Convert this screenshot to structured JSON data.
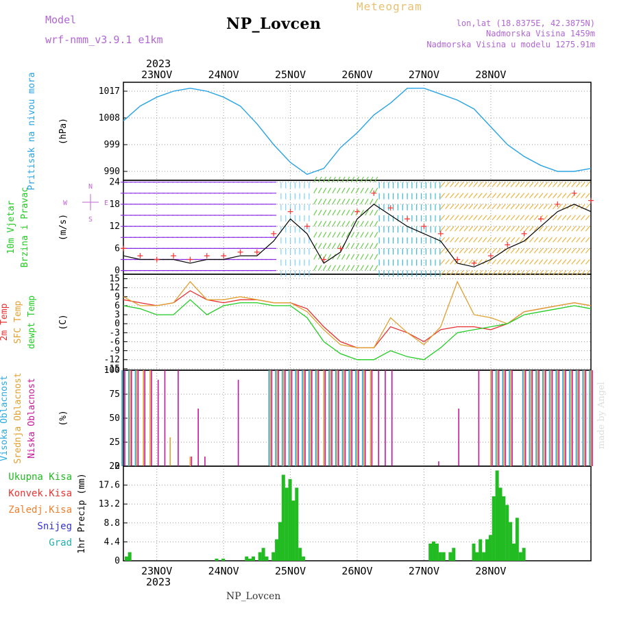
{
  "header": {
    "model_label": "Model",
    "model_name": "wrf-nmm_v3.9.1  e1km",
    "station": "NP_Lovcen",
    "product": "Meteogram",
    "lonlat": "lon,lat (18.8375E, 42.3875N)",
    "altitude": "Nadmorska Visina 1459m",
    "model_altitude": "Nadmorska Visina u modelu 1275.91m",
    "year_top": "2023",
    "year_bottom": "2023",
    "footer_station": "NP_Lovcen",
    "credit": "made by Angel"
  },
  "colors": {
    "pressure": "#29a3e6",
    "wind_speed": "#000000",
    "gust_marker": "#ff3030",
    "temp_2m": "#e83030",
    "temp_sfc": "#e0a030",
    "temp_dew": "#22cc22",
    "cloud_high": "#2aa8e0",
    "cloud_mid": "#e0a030",
    "cloud_low": "#c8169a",
    "precip_total": "#22bb22",
    "precip_conv": "#ee3333",
    "precip_snow": "#3333cc",
    "precip_grad": "#22b0b0",
    "precip_freeze": "#f08030"
  },
  "time_axis": [
    "23NOV",
    "24NOV",
    "25NOV",
    "26NOV",
    "27NOV",
    "28NOV"
  ],
  "chart_data": [
    {
      "type": "line",
      "id": "pressure",
      "ylabel_lines": [
        "Pritisak na nivou mora",
        "(hPa)"
      ],
      "yticks": [
        990,
        999,
        1008,
        1017
      ],
      "ylim": [
        987,
        1020
      ],
      "x": [
        0.5,
        0.75,
        1.0,
        1.25,
        1.5,
        1.75,
        2.0,
        2.25,
        2.5,
        2.75,
        3.0,
        3.25,
        3.5,
        3.75,
        4.0,
        4.25,
        4.5,
        4.75,
        5.0,
        5.25,
        5.5,
        5.75,
        6.0,
        6.25,
        6.5,
        6.75,
        7.0,
        7.25,
        7.5
      ],
      "series": [
        {
          "values": [
            1007,
            1012,
            1015,
            1017,
            1018,
            1017,
            1015,
            1012,
            1006,
            999,
            993,
            989,
            991,
            998,
            1003,
            1009,
            1013,
            1018,
            1018,
            1016,
            1014,
            1011,
            1005,
            999,
            995,
            992,
            990,
            990,
            991
          ]
        }
      ]
    },
    {
      "type": "line",
      "id": "wind",
      "ylabel_lines": [
        "10m Vjetar",
        "Brzina i Pravac",
        "(m/s)"
      ],
      "compass": {
        "w": "W",
        "e": "E",
        "n": "N",
        "s": "S"
      },
      "yticks": [
        0,
        6,
        12,
        18,
        24
      ],
      "ylim": [
        -1,
        24.5
      ],
      "x": [
        0.5,
        0.75,
        1.0,
        1.25,
        1.5,
        1.75,
        2.0,
        2.25,
        2.5,
        2.75,
        3.0,
        3.25,
        3.5,
        3.75,
        4.0,
        4.25,
        4.5,
        4.75,
        5.0,
        5.25,
        5.5,
        5.75,
        6.0,
        6.25,
        6.5,
        6.75,
        7.0,
        7.25,
        7.5
      ],
      "series": [
        {
          "name": "speed",
          "values": [
            4,
            3,
            3,
            3,
            2,
            3,
            3,
            4,
            4,
            8,
            14,
            10,
            2,
            5,
            14,
            18,
            15,
            12,
            10,
            8,
            2,
            1,
            3,
            6,
            8,
            12,
            16,
            18,
            16
          ]
        },
        {
          "name": "gust",
          "values": [
            6,
            4,
            3,
            4,
            3,
            4,
            4,
            5,
            5,
            10,
            16,
            12,
            3,
            6,
            16,
            21,
            17,
            14,
            12,
            10,
            3,
            2,
            4,
            7,
            10,
            14,
            18,
            21,
            19
          ]
        }
      ]
    },
    {
      "type": "line",
      "id": "temperature",
      "ylabel_lines": [
        "2m Temp",
        "SFC Temp",
        "dewpt Temp",
        "(C)"
      ],
      "yticks": [
        -15,
        -12,
        -9,
        -6,
        -3,
        0,
        3,
        6,
        9,
        12,
        15
      ],
      "ylim": [
        -15.5,
        16.5
      ],
      "x": [
        0.5,
        0.75,
        1.0,
        1.25,
        1.5,
        1.75,
        2.0,
        2.25,
        2.5,
        2.75,
        3.0,
        3.25,
        3.5,
        3.75,
        4.0,
        4.25,
        4.5,
        4.75,
        5.0,
        5.25,
        5.5,
        5.75,
        6.0,
        6.25,
        6.5,
        6.75,
        7.0,
        7.25,
        7.5
      ],
      "series": [
        {
          "name": "2m",
          "values": [
            8,
            7,
            6,
            7,
            11,
            8,
            7,
            8,
            8,
            7,
            7,
            5,
            -1,
            -6,
            -8,
            -8,
            -1,
            -3,
            -6,
            -2,
            -1,
            -1,
            -2,
            0,
            4,
            5,
            6,
            7,
            6
          ]
        },
        {
          "name": "sfc",
          "values": [
            9,
            6,
            6,
            7,
            14,
            8,
            8,
            9,
            8,
            7,
            7,
            4,
            -2,
            -7,
            -8,
            -8,
            2,
            -3,
            -7,
            -1,
            14,
            3,
            2,
            0,
            4,
            5,
            6,
            7,
            6
          ]
        },
        {
          "name": "dew",
          "values": [
            6,
            5,
            3,
            3,
            8,
            3,
            6,
            7,
            7,
            6,
            6,
            2,
            -6,
            -10,
            -12,
            -12,
            -9,
            -11,
            -12,
            -8,
            -3,
            -2,
            -1,
            0,
            3,
            4,
            5,
            6,
            5
          ]
        }
      ]
    },
    {
      "type": "bar",
      "id": "clouds",
      "ylabel_lines": [
        "Visoka Oblacnost",
        "Srednja Oblacnost",
        "Niska Oblacnost",
        "(%)"
      ],
      "yticks": [
        0,
        25,
        50,
        75,
        100
      ],
      "ylim": [
        0,
        100
      ],
      "x": [
        0.5,
        0.6,
        0.7,
        0.8,
        0.9,
        1.0,
        1.1,
        1.2,
        1.3,
        1.5,
        1.6,
        1.7,
        2.0,
        2.2,
        2.7,
        2.8,
        2.9,
        3.0,
        3.1,
        3.2,
        3.3,
        3.4,
        3.5,
        3.6,
        3.7,
        3.8,
        3.9,
        4.0,
        4.1,
        4.2,
        4.3,
        4.4,
        4.5,
        5.2,
        5.5,
        5.8,
        6.0,
        6.1,
        6.2,
        6.3,
        6.5,
        6.6,
        6.7,
        6.8,
        6.9,
        7.0,
        7.1,
        7.2,
        7.3,
        7.4,
        7.5
      ],
      "series": [
        {
          "name": "high",
          "values": [
            100,
            100,
            100,
            0,
            0,
            0,
            0,
            0,
            0,
            0,
            0,
            0,
            0,
            0,
            100,
            100,
            100,
            100,
            100,
            100,
            100,
            100,
            0,
            100,
            100,
            100,
            100,
            100,
            100,
            0,
            0,
            0,
            0,
            0,
            0,
            0,
            0,
            100,
            100,
            100,
            100,
            100,
            100,
            100,
            100,
            100,
            100,
            100,
            100,
            100,
            100
          ]
        },
        {
          "name": "mid",
          "values": [
            0,
            100,
            100,
            100,
            100,
            0,
            0,
            30,
            0,
            10,
            0,
            0,
            0,
            0,
            100,
            100,
            100,
            100,
            100,
            100,
            100,
            100,
            100,
            100,
            100,
            100,
            100,
            100,
            100,
            100,
            0,
            0,
            0,
            0,
            0,
            0,
            100,
            100,
            100,
            100,
            100,
            100,
            100,
            100,
            100,
            100,
            100,
            100,
            100,
            100,
            100
          ]
        },
        {
          "name": "low",
          "values": [
            100,
            100,
            100,
            100,
            100,
            90,
            100,
            0,
            100,
            10,
            60,
            10,
            0,
            90,
            100,
            100,
            100,
            100,
            100,
            100,
            100,
            100,
            100,
            100,
            100,
            100,
            100,
            100,
            100,
            100,
            100,
            100,
            100,
            5,
            60,
            100,
            100,
            100,
            100,
            100,
            100,
            100,
            100,
            100,
            100,
            100,
            100,
            100,
            100,
            100,
            100
          ]
        }
      ]
    },
    {
      "type": "bar",
      "id": "precip",
      "ylabel_lines": [
        "1hr Precip (mm)"
      ],
      "legend": [
        "Ukupna Kisa",
        "Konvek.Kisa",
        "Zaledj.Kisa",
        "Snijeg",
        "Grad"
      ],
      "yticks": [
        0,
        4.4,
        8.8,
        13.2,
        17.6,
        22
      ],
      "ylim": [
        0,
        22
      ],
      "x": [
        0.55,
        0.6,
        1.9,
        2.0,
        2.35,
        2.4,
        2.45,
        2.55,
        2.6,
        2.65,
        2.75,
        2.8,
        2.85,
        2.9,
        2.95,
        3.0,
        3.05,
        3.1,
        3.15,
        3.2,
        5.1,
        5.15,
        5.2,
        5.25,
        5.3,
        5.4,
        5.45,
        5.75,
        5.8,
        5.85,
        5.9,
        5.95,
        6.0,
        6.05,
        6.1,
        6.15,
        6.2,
        6.25,
        6.3,
        6.35,
        6.4,
        6.45,
        6.5
      ],
      "series": [
        {
          "name": "total",
          "values": [
            1,
            2,
            0.5,
            0.5,
            1,
            0.5,
            1,
            2,
            3,
            1,
            2,
            5,
            9,
            20,
            17,
            19,
            14,
            17,
            3,
            1,
            4,
            4.5,
            4,
            2,
            2,
            2,
            3,
            4,
            2,
            5,
            2,
            5,
            6,
            15,
            21,
            17,
            15,
            13,
            9,
            4,
            10,
            2,
            3
          ]
        }
      ]
    }
  ]
}
